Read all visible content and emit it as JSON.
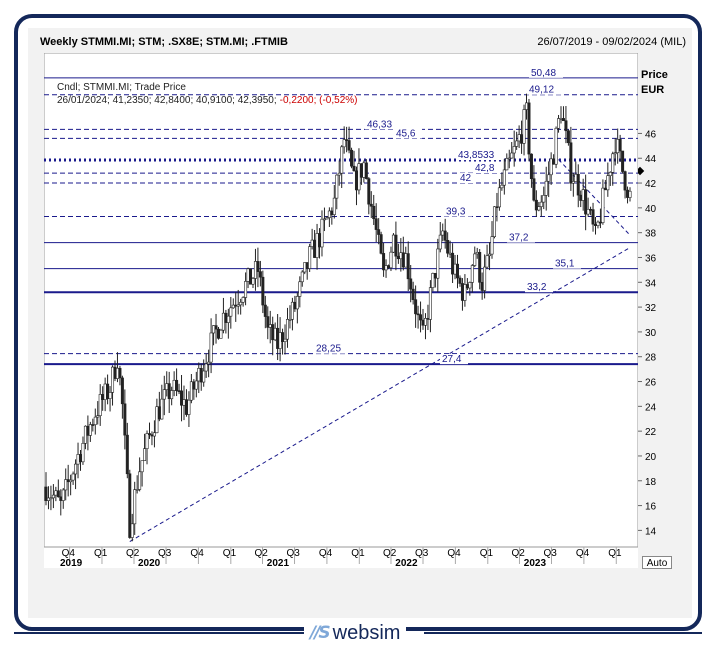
{
  "header": {
    "title": "Weekly STMMI.MI; STM; .SX8E; STM.MI; .FTMIB",
    "date_range": "26/07/2019 - 09/02/2024 (MIL)"
  },
  "info": {
    "line1": "Cndl; STMMI.MI; Trade Price",
    "line2_values": "26/01/2024; 41,2350; 42,8400; 40,9100; 42,3950;",
    "line2_change": "-0,2200; (-0,52%)"
  },
  "axis": {
    "price_label": "Price",
    "currency_label": "EUR",
    "auto_label": "Auto"
  },
  "brand": {
    "mark": "//S",
    "name": "websim"
  },
  "colors": {
    "navy": "#14285a",
    "level_line": "#1a1a8c",
    "candle": "#222222",
    "change_negative": "#cc0000"
  },
  "chart_data": {
    "type": "candlestick",
    "ylim": [
      12.5,
      52
    ],
    "y_ticks": [
      14,
      16,
      18,
      20,
      22,
      24,
      26,
      28,
      30,
      32,
      34,
      36,
      38,
      40,
      42,
      44,
      46
    ],
    "quarter_ticks": [
      {
        "label": "Q4",
        "date": "2019-10-01"
      },
      {
        "label": "Q1",
        "date": "2020-01-01"
      },
      {
        "label": "Q2",
        "date": "2020-04-01"
      },
      {
        "label": "Q3",
        "date": "2020-07-01"
      },
      {
        "label": "Q4",
        "date": "2020-10-01"
      },
      {
        "label": "Q1",
        "date": "2021-01-01"
      },
      {
        "label": "Q2",
        "date": "2021-04-01"
      },
      {
        "label": "Q3",
        "date": "2021-07-01"
      },
      {
        "label": "Q4",
        "date": "2021-10-01"
      },
      {
        "label": "Q1",
        "date": "2022-01-01"
      },
      {
        "label": "Q2",
        "date": "2022-04-01"
      },
      {
        "label": "Q3",
        "date": "2022-07-01"
      },
      {
        "label": "Q4",
        "date": "2022-10-01"
      },
      {
        "label": "Q1",
        "date": "2023-01-01"
      },
      {
        "label": "Q2",
        "date": "2023-04-01"
      },
      {
        "label": "Q3",
        "date": "2023-07-01"
      },
      {
        "label": "Q4",
        "date": "2023-10-01"
      },
      {
        "label": "Q1",
        "date": "2024-01-01"
      }
    ],
    "year_ticks": [
      {
        "label": "2019",
        "date": "2019-07-26"
      },
      {
        "label": "2020",
        "date": "2020-01-01"
      },
      {
        "label": "2021",
        "date": "2021-01-01"
      },
      {
        "label": "2022",
        "date": "2022-01-01"
      },
      {
        "label": "2023",
        "date": "2023-01-01"
      }
    ],
    "levels": [
      {
        "value": 50.48,
        "label": "50,48",
        "style": "solid"
      },
      {
        "value": 49.12,
        "label": "49,12",
        "style": "dashed"
      },
      {
        "value": 46.33,
        "label": "46,33",
        "style": "dashed"
      },
      {
        "value": 45.6,
        "label": "45,6",
        "style": "dashed"
      },
      {
        "value": 43.8533,
        "label": "43,8533",
        "style": "dotted-thick"
      },
      {
        "value": 42.8,
        "label": "42,8",
        "style": "dashed"
      },
      {
        "value": 42,
        "label": "42",
        "style": "dashed"
      },
      {
        "value": 39.3,
        "label": "39,3",
        "style": "dashed"
      },
      {
        "value": 37.2,
        "label": "37,2",
        "style": "solid"
      },
      {
        "value": 35.1,
        "label": "35,1",
        "style": "solid"
      },
      {
        "value": 33.2,
        "label": "33,2",
        "style": "solid-thick"
      },
      {
        "value": 28.25,
        "label": "28,25",
        "style": "dashed"
      },
      {
        "value": 27.4,
        "label": "27,4",
        "style": "solid-thick"
      }
    ],
    "trendlines": [
      {
        "from": [
          "2020-03-20",
          13.1
        ],
        "to": [
          "2024-02-09",
          36.8
        ]
      },
      {
        "from": [
          "2023-07-21",
          43.9
        ],
        "to": [
          "2024-02-09",
          37.8
        ]
      }
    ],
    "anchors": [
      [
        "2019-07-26",
        17.5
      ],
      [
        "2019-09-06",
        16.0
      ],
      [
        "2019-10-18",
        19.5
      ],
      [
        "2019-12-13",
        23.5
      ],
      [
        "2020-01-24",
        25.5
      ],
      [
        "2020-02-14",
        28.0
      ],
      [
        "2020-02-28",
        24.0
      ],
      [
        "2020-03-20",
        14.5
      ],
      [
        "2020-04-17",
        19.0
      ],
      [
        "2020-06-05",
        23.5
      ],
      [
        "2020-07-17",
        25.5
      ],
      [
        "2020-08-28",
        24.0
      ],
      [
        "2020-10-30",
        28.5
      ],
      [
        "2020-12-04",
        31.0
      ],
      [
        "2021-02-05",
        33.5
      ],
      [
        "2021-03-19",
        35.0
      ],
      [
        "2021-04-16",
        30.0
      ],
      [
        "2021-05-14",
        29.0
      ],
      [
        "2021-07-02",
        32.0
      ],
      [
        "2021-08-13",
        36.0
      ],
      [
        "2021-09-24",
        38.5
      ],
      [
        "2021-10-22",
        40.5
      ],
      [
        "2021-11-19",
        45.5
      ],
      [
        "2021-12-17",
        42.0
      ],
      [
        "2022-01-14",
        43.5
      ],
      [
        "2022-02-18",
        38.0
      ],
      [
        "2022-03-11",
        34.5
      ],
      [
        "2022-04-08",
        37.5
      ],
      [
        "2022-05-13",
        36.0
      ],
      [
        "2022-06-17",
        31.0
      ],
      [
        "2022-07-01",
        29.5
      ],
      [
        "2022-07-29",
        34.0
      ],
      [
        "2022-08-26",
        38.0
      ],
      [
        "2022-09-30",
        34.5
      ],
      [
        "2022-10-28",
        33.0
      ],
      [
        "2022-11-25",
        36.5
      ],
      [
        "2022-12-16",
        34.0
      ],
      [
        "2023-01-06",
        36.0
      ],
      [
        "2023-01-27",
        40.5
      ],
      [
        "2023-02-24",
        43.0
      ],
      [
        "2023-03-24",
        45.0
      ],
      [
        "2023-04-21",
        47.5
      ],
      [
        "2023-05-12",
        40.0
      ],
      [
        "2023-06-09",
        41.0
      ],
      [
        "2023-07-07",
        44.5
      ],
      [
        "2023-07-28",
        48.0
      ],
      [
        "2023-08-25",
        43.0
      ],
      [
        "2023-09-22",
        41.5
      ],
      [
        "2023-10-20",
        39.0
      ],
      [
        "2023-11-03",
        37.5
      ],
      [
        "2023-12-01",
        41.5
      ],
      [
        "2023-12-29",
        45.5
      ],
      [
        "2024-01-19",
        43.0
      ],
      [
        "2024-02-09",
        41.0
      ]
    ],
    "last_candle": {
      "date": "2024-01-26",
      "open": 41.235,
      "high": 42.84,
      "low": 40.91,
      "close": 42.395,
      "change": -0.22,
      "change_pct": -0.52
    }
  }
}
